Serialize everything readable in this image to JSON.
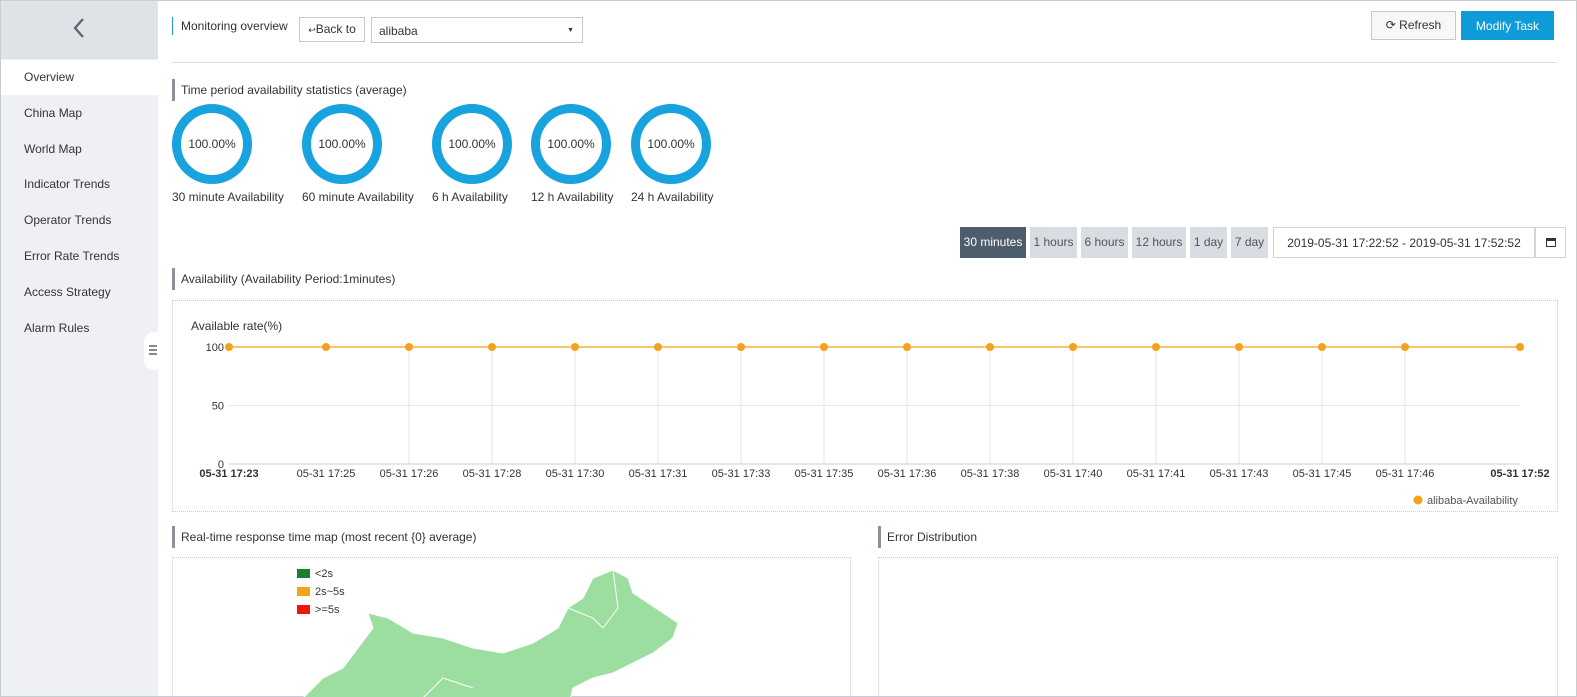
{
  "sidebar": {
    "items": [
      "Overview",
      "China Map",
      "World Map",
      "Indicator Trends",
      "Operator Trends",
      "Error Rate Trends",
      "Access Strategy",
      "Alarm Rules"
    ]
  },
  "header": {
    "title": "Monitoring overview",
    "back": "Back to",
    "select": "alibaba",
    "refresh": "Refresh",
    "modify": "Modify Task"
  },
  "stats": {
    "title": "Time period availability statistics (average)",
    "gauges": [
      {
        "value": "100.00%",
        "label": "30 minute Availability"
      },
      {
        "value": "100.00%",
        "label": "60 minute Availability"
      },
      {
        "value": "100.00%",
        "label": "6 h Availability"
      },
      {
        "value": "100.00%",
        "label": "12 h Availability"
      },
      {
        "value": "100.00%",
        "label": "24 h Availability"
      }
    ]
  },
  "range": {
    "buttons": [
      "30 minutes",
      "1 hours",
      "6 hours",
      "12 hours",
      "1 day",
      "7 day"
    ],
    "dates": "2019-05-31 17:22:52 - 2019-05-31 17:52:52"
  },
  "availability": {
    "title": "Availability (Availability Period:1minutes)"
  },
  "chart_data": {
    "type": "line",
    "title": "Available rate(%)",
    "categories": [
      "05-31 17:23",
      "05-31 17:25",
      "05-31 17:26",
      "05-31 17:28",
      "05-31 17:30",
      "05-31 17:31",
      "05-31 17:33",
      "05-31 17:35",
      "05-31 17:36",
      "05-31 17:38",
      "05-31 17:40",
      "05-31 17:41",
      "05-31 17:43",
      "05-31 17:45",
      "05-31 17:46",
      "05-31 17:52"
    ],
    "series": [
      {
        "name": "alibaba-Availability",
        "color": "#f5a21b",
        "values": [
          100,
          100,
          100,
          100,
          100,
          100,
          100,
          100,
          100,
          100,
          100,
          100,
          100,
          100,
          100,
          100
        ]
      }
    ],
    "ylim": [
      0,
      100
    ],
    "yticks": [
      0,
      50,
      100
    ],
    "grid": true,
    "legend": "bottom-right"
  },
  "map": {
    "title": "Real-time response time map (most recent {0} average)",
    "legend": [
      {
        "label": "<2s",
        "color": "#1a7f2e"
      },
      {
        "label": "2s~5s",
        "color": "#f5a21b"
      },
      {
        "label": ">=5s",
        "color": "#f0140c"
      }
    ]
  },
  "errors": {
    "title": "Error Distribution"
  }
}
